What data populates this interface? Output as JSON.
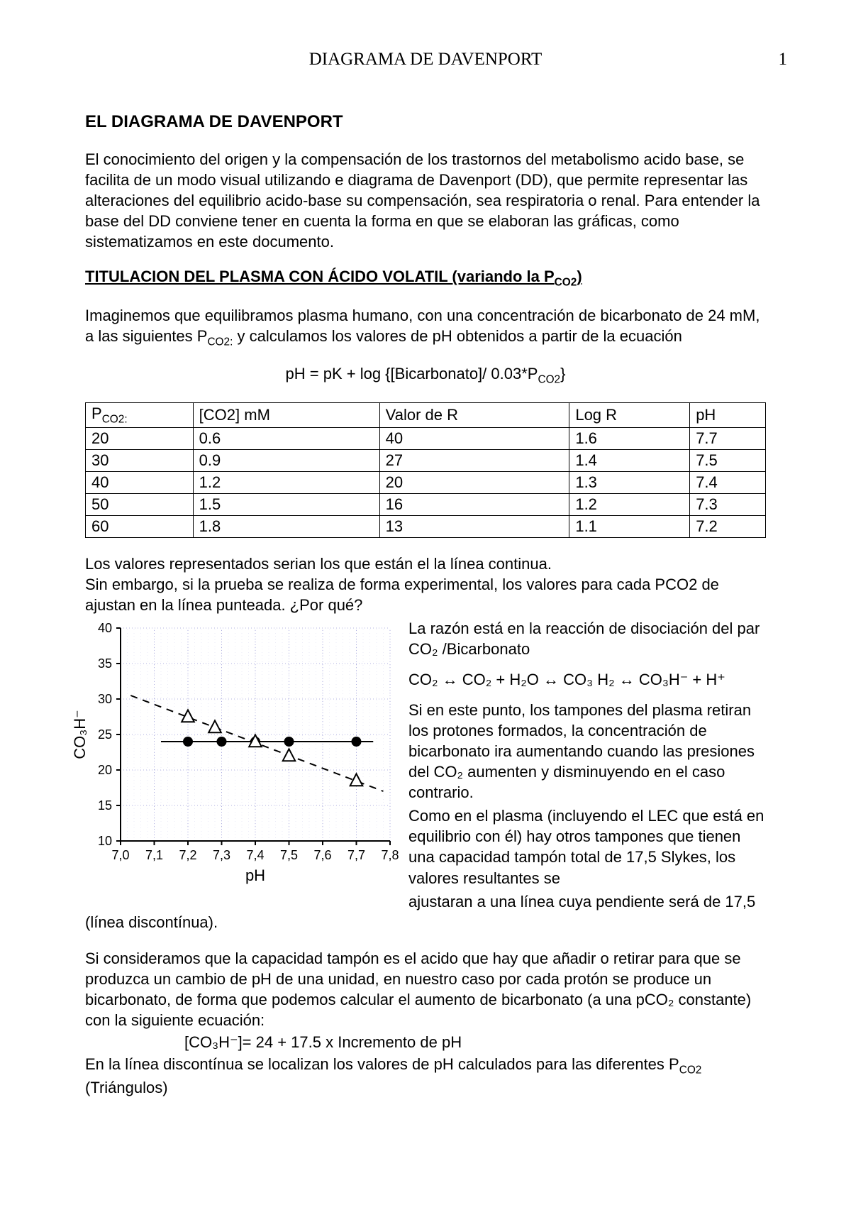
{
  "header": {
    "running_title": "DIAGRAMA DE DAVENPORT",
    "page_number": "1"
  },
  "title": "EL DIAGRAMA DE DAVENPORT",
  "intro": "El conocimiento del origen y la compensación de los trastornos del metabolismo acido base, se facilita de un modo visual utilizando e diagrama de Davenport (DD), que permite representar las alteraciones del equilibrio acido-base su compensación, sea respiratoria o renal. Para entender la base del DD conviene tener en cuenta la forma en que se elaboran las gráficas, como sistematizamos en este documento.",
  "subhead_pre": "TITULACION DEL PLASMA CON ÁCIDO VOLATIL (variando la P",
  "subhead_sub": "CO2",
  "subhead_post": ")",
  "para2_a": "Imaginemos que equilibramos plasma humano, con una concentración de bicarbonato de 24 mM, a las siguientes P",
  "para2_b": " y calculamos los valores de pH obtenidos a partir de la ecuación",
  "formula": "pH = pK + log {[Bicarbonato]/ 0.03*P",
  "formula_sub": "CO2",
  "formula_end": "}",
  "table": {
    "columns": [
      "PCO2:",
      "[CO2] mM",
      "Valor de R",
      "Log R",
      "pH"
    ],
    "rows": [
      [
        "20",
        "0.6",
        "40",
        "1.6",
        "7.7"
      ],
      [
        "30",
        "0.9",
        "27",
        "1.4",
        "7.5"
      ],
      [
        "40",
        "1.2",
        "20",
        "1.3",
        "7.4"
      ],
      [
        "50",
        "1.5",
        "16",
        "1.2",
        "7.3"
      ],
      [
        "60",
        "1.8",
        "13",
        "1.1",
        "7.2"
      ]
    ]
  },
  "para3": "Los valores representados serian los que están el la línea continua.\nSin embargo, si la prueba se realiza de forma experimental, los valores para cada PCO2 de ajustan en  la línea punteada. ¿Por qué?",
  "right_col": {
    "p1": "La razón está en la reacción de disociación del par CO₂ /Bicarbonato",
    "eq": "CO₂ ↔ CO₂ + H₂O ↔ CO₃ H₂ ↔ CO₃H⁻ + H⁺",
    "p2": "Si en este punto, los tampones del plasma retiran los protones formados, la concentración de bicarbonato ira aumentando cuando las presiones del CO₂ aumenten y disminuyendo en el caso contrario.",
    "p3": "Como en el plasma (incluyendo el LEC que está en equilibrio con él) hay otros tampones que tienen una capacidad tampón total de 17,5 Slykes, los valores resultantes se"
  },
  "after_float": "ajustaran a una línea cuya pendiente será de 17,5 (línea discontínua).",
  "para5": "Si consideramos que la capacidad tampón es el acido que hay que añadir o retirar para que se produzca un cambio de pH de una unidad, en nuestro caso por cada protón se produce un bicarbonato, de forma que podemos calcular el aumento de bicarbonato (a una pCO₂ constante) con la siguiente ecuación:",
  "eq2": "[CO₃H⁻]= 24 + 17.5 x Incremento de pH",
  "para6": "En la línea discontínua se localizan los valores de pH calculados para las diferentes P",
  "para6_sub": "CO2",
  "para6_end": " (Triángulos)",
  "chart": {
    "type": "scatter-line",
    "xlabel": "pH",
    "ylabel": "CO₃H⁻",
    "xlim": [
      7.0,
      7.8
    ],
    "ylim": [
      10,
      40
    ],
    "xticks": [
      "7,0",
      "7,1",
      "7,2",
      "7,3",
      "7,4",
      "7,5",
      "7,6",
      "7,7",
      "7,8"
    ],
    "yticks": [
      10,
      15,
      20,
      25,
      30,
      35,
      40
    ],
    "grid_color": "#b0b0e0",
    "grid_dash": "1,3",
    "axis_color": "#000000",
    "background": "#ffffff",
    "solid_line": {
      "color": "#000000",
      "width": 2,
      "y": 24,
      "x_from": 7.12,
      "x_to": 7.75
    },
    "circles": {
      "color": "#000000",
      "radius": 7,
      "points": [
        [
          7.2,
          24
        ],
        [
          7.3,
          24
        ],
        [
          7.4,
          24
        ],
        [
          7.5,
          24
        ],
        [
          7.7,
          24
        ]
      ]
    },
    "dashed_line": {
      "color": "#000000",
      "width": 2,
      "dash": "10,8",
      "from": [
        7.03,
        30.5
      ],
      "to": [
        7.78,
        17
      ]
    },
    "triangles": {
      "stroke": "#000000",
      "fill": "#ffffff",
      "size": 16,
      "points": [
        [
          7.2,
          27.5
        ],
        [
          7.28,
          26
        ],
        [
          7.4,
          24
        ],
        [
          7.5,
          22
        ],
        [
          7.7,
          18.5
        ]
      ]
    },
    "tick_fontsize": 18,
    "label_fontsize": 22
  }
}
